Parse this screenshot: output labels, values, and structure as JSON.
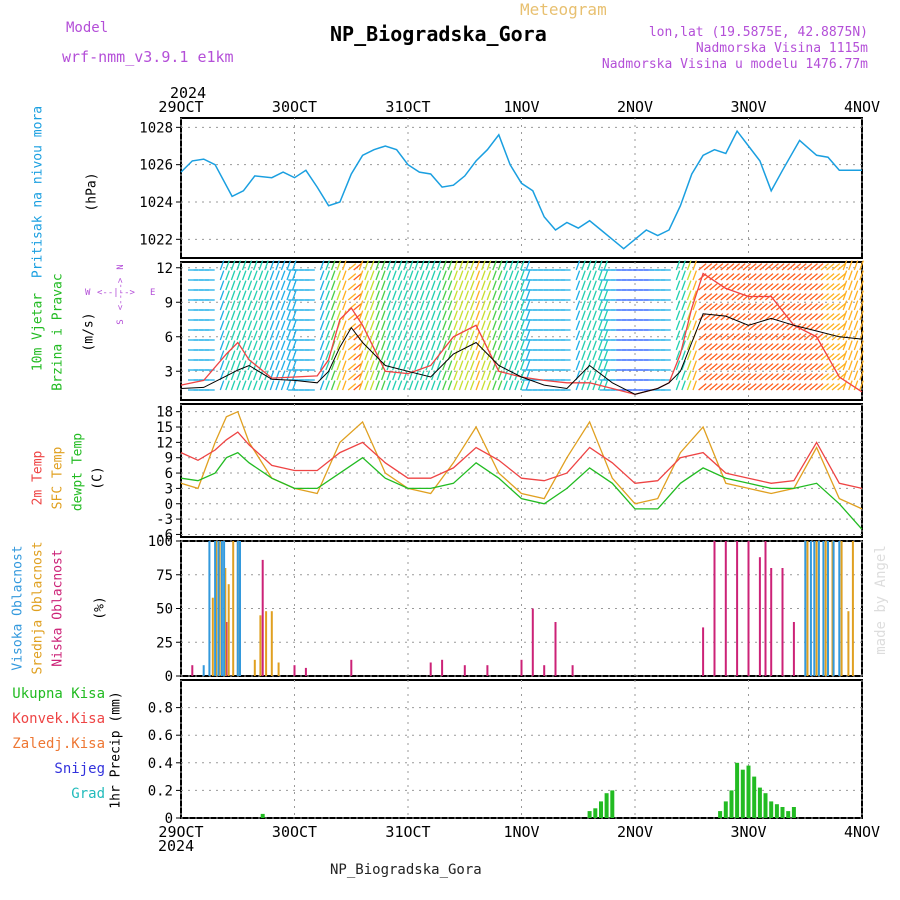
{
  "header": {
    "model_label": "Model",
    "model_name": "wrf-nmm_v3.9.1 e1km",
    "product": "Meteogram",
    "station": "NP_Biogradska_Gora",
    "lonlat": "lon,lat (19.5875E, 42.8875N)",
    "elevation": "Nadmorska Visina 1115m",
    "model_elevation": "Nadmorska Visina u modelu 1476.77m",
    "footer_station": "NP_Biogradska_Gora",
    "watermark": "made by Angel"
  },
  "colors": {
    "pressure": "#1a9fe0",
    "speed_line": "#000000",
    "gust": "#ee4444",
    "temp_2m": "#ee4444",
    "temp_sfc": "#e0a020",
    "dewpoint": "#22bb22",
    "cloud_high": "#3399dd",
    "cloud_mid": "#e0a020",
    "cloud_low": "#cc2277",
    "precip": "#22bb22",
    "header_purple": "#b44fd8",
    "header_orange": "#e8c070"
  },
  "time_axis": {
    "year": "2024",
    "ticks": [
      "29OCT",
      "30OCT",
      "31OCT",
      "1NOV",
      "2NOV",
      "3NOV",
      "4NOV"
    ]
  },
  "panels": {
    "pressure": {
      "label": "Pritisak na nivou mora",
      "unit": "(hPa)",
      "ticks": [
        "1022",
        "1024",
        "1026",
        "1028"
      ]
    },
    "wind": {
      "label1": "10m Vjetar",
      "label2": "Brzina i Pravac",
      "unit": "(m/s)",
      "ticks": [
        "3",
        "6",
        "9",
        "12"
      ],
      "compass_n": "N",
      "compass_s": "S",
      "compass_e": "E",
      "compass_w": "W",
      "compass_axis_v": "<---->",
      "compass_axis_h": "<--|-->"
    },
    "temp": {
      "label1": "2m Temp",
      "label2": "SFC Temp",
      "label3": "dewpt Temp",
      "unit": "(C)",
      "ticks": [
        "-6",
        "-3",
        "0",
        "3",
        "6",
        "9",
        "12",
        "15",
        "18"
      ]
    },
    "cloud": {
      "label1": "Visoka Oblacnost",
      "label2": "Srednja Oblacnost",
      "label3": "Niska Oblacnost",
      "unit": "(%)",
      "ticks": [
        "0",
        "25",
        "50",
        "75",
        "100"
      ]
    },
    "precip": {
      "legend": [
        "Ukupna Kisa",
        "Konvek.Kisa",
        "Zaledj.Kisa",
        "Snijeg",
        "Grad"
      ],
      "legend_colors": [
        "#22bb22",
        "#ee4444",
        "#ee7733",
        "#3333dd",
        "#22bbbb"
      ],
      "unit": "1hr Precip (mm)",
      "ticks": [
        "0",
        "0.2",
        "0.4",
        "0.6",
        "0.8"
      ]
    }
  },
  "chart_data": [
    {
      "type": "line",
      "title": "Pritisak na nivou mora",
      "ylabel": "(hPa)",
      "x_unit": "days since 29OCT 00UTC",
      "ylim": [
        1021,
        1028.5
      ],
      "series": [
        {
          "name": "pressure",
          "x": [
            0,
            0.1,
            0.2,
            0.3,
            0.45,
            0.55,
            0.65,
            0.8,
            0.9,
            1.0,
            1.1,
            1.2,
            1.3,
            1.4,
            1.5,
            1.6,
            1.7,
            1.8,
            1.9,
            2.0,
            2.1,
            2.2,
            2.3,
            2.4,
            2.5,
            2.6,
            2.7,
            2.8,
            2.9,
            3.0,
            3.1,
            3.2,
            3.3,
            3.4,
            3.5,
            3.6,
            3.7,
            3.8,
            3.9,
            4.0,
            4.1,
            4.2,
            4.3,
            4.4,
            4.5,
            4.6,
            4.7,
            4.8,
            4.9,
            5.0,
            5.1,
            5.2,
            5.3,
            5.45,
            5.6,
            5.7,
            5.8,
            5.9,
            6.0
          ],
          "values": [
            1025.6,
            1026.2,
            1026.3,
            1026.0,
            1024.3,
            1024.6,
            1025.4,
            1025.3,
            1025.6,
            1025.3,
            1025.7,
            1024.8,
            1023.8,
            1024.0,
            1025.5,
            1026.5,
            1026.8,
            1027.0,
            1026.8,
            1026.0,
            1025.6,
            1025.5,
            1024.8,
            1024.9,
            1025.4,
            1026.2,
            1026.8,
            1027.6,
            1026.0,
            1025.0,
            1024.6,
            1023.2,
            1022.5,
            1022.9,
            1022.6,
            1023.0,
            1022.5,
            1022.0,
            1021.5,
            1022.0,
            1022.5,
            1022.2,
            1022.5,
            1023.8,
            1025.5,
            1026.5,
            1026.8,
            1026.6,
            1027.8,
            1027.0,
            1026.2,
            1024.6,
            1025.7,
            1027.3,
            1026.5,
            1026.4,
            1025.7,
            1025.7,
            1025.7
          ]
        }
      ]
    },
    {
      "type": "line",
      "title": "10m Vjetar Brzina i Pravac",
      "ylabel": "(m/s)",
      "x_unit": "days since 29OCT 00UTC",
      "ylim": [
        0.5,
        12.5
      ],
      "series": [
        {
          "name": "speed",
          "x": [
            0,
            0.2,
            0.4,
            0.5,
            0.6,
            0.8,
            1.0,
            1.2,
            1.3,
            1.4,
            1.5,
            1.6,
            1.8,
            2.0,
            2.2,
            2.4,
            2.6,
            2.8,
            3.0,
            3.2,
            3.4,
            3.6,
            3.8,
            4.0,
            4.2,
            4.3,
            4.4,
            4.5,
            4.6,
            4.8,
            5.0,
            5.2,
            5.4,
            5.6,
            5.8,
            6.0
          ],
          "values": [
            1.5,
            1.6,
            2.6,
            3.1,
            3.5,
            2.3,
            2.2,
            2.0,
            3.0,
            5.1,
            6.8,
            5.5,
            3.5,
            3.0,
            2.5,
            4.5,
            5.5,
            3.5,
            2.5,
            1.8,
            1.5,
            3.5,
            2.0,
            1.0,
            1.5,
            2.0,
            3.0,
            5.5,
            8.0,
            7.8,
            7.0,
            7.6,
            7.0,
            6.5,
            6.0,
            5.8
          ]
        },
        {
          "name": "gust",
          "x": [
            0,
            0.2,
            0.4,
            0.5,
            0.6,
            0.8,
            1.0,
            1.2,
            1.3,
            1.4,
            1.5,
            1.6,
            1.8,
            2.0,
            2.2,
            2.4,
            2.6,
            2.8,
            3.0,
            3.2,
            3.4,
            3.6,
            3.8,
            4.0,
            4.2,
            4.3,
            4.4,
            4.5,
            4.6,
            4.8,
            5.0,
            5.2,
            5.4,
            5.6,
            5.8,
            6.0
          ],
          "values": [
            1.8,
            2.2,
            4.5,
            5.5,
            4.0,
            2.4,
            2.5,
            2.6,
            4.0,
            7.5,
            8.5,
            7.0,
            3.0,
            2.8,
            3.5,
            6.0,
            7.0,
            3.0,
            2.5,
            2.2,
            2.0,
            2.0,
            1.5,
            1.0,
            1.5,
            2.0,
            4.5,
            8.5,
            11.5,
            10.2,
            9.5,
            9.5,
            7.0,
            6.0,
            2.5,
            1.2
          ]
        }
      ]
    },
    {
      "type": "line",
      "title": "2m Temp / SFC Temp / dewpt Temp",
      "ylabel": "(C)",
      "x_unit": "days since 29OCT 00UTC",
      "ylim": [
        -6.5,
        19.5
      ],
      "series": [
        {
          "name": "2m Temp",
          "x": [
            0,
            0.15,
            0.3,
            0.4,
            0.5,
            0.6,
            0.8,
            1.0,
            1.2,
            1.4,
            1.6,
            1.8,
            2.0,
            2.2,
            2.4,
            2.6,
            2.8,
            3.0,
            3.2,
            3.4,
            3.6,
            3.8,
            4.0,
            4.2,
            4.4,
            4.6,
            4.8,
            5.0,
            5.2,
            5.4,
            5.6,
            5.8,
            6.0
          ],
          "values": [
            10,
            8.5,
            10.5,
            12.5,
            14,
            11.5,
            7.5,
            6.5,
            6.5,
            10,
            12,
            8,
            5,
            5,
            7,
            11,
            8.5,
            5,
            4.5,
            6,
            11,
            8,
            4,
            4.5,
            9,
            10,
            6,
            5,
            4,
            4.5,
            12,
            4,
            3
          ]
        },
        {
          "name": "SFC Temp",
          "x": [
            0,
            0.15,
            0.3,
            0.4,
            0.5,
            0.6,
            0.8,
            1.0,
            1.2,
            1.4,
            1.6,
            1.8,
            2.0,
            2.2,
            2.4,
            2.6,
            2.8,
            3.0,
            3.2,
            3.4,
            3.6,
            3.8,
            4.0,
            4.2,
            4.4,
            4.6,
            4.8,
            5.0,
            5.2,
            5.4,
            5.6,
            5.8,
            6.0
          ],
          "values": [
            4,
            3,
            12,
            17,
            18,
            12,
            5,
            3,
            2,
            12,
            16,
            6,
            3,
            2,
            8,
            15,
            6,
            2,
            1,
            9,
            16,
            5,
            0,
            1,
            10,
            15,
            4,
            3,
            2,
            3,
            11,
            1,
            -1
          ]
        },
        {
          "name": "dewpt Temp",
          "x": [
            0,
            0.15,
            0.3,
            0.4,
            0.5,
            0.6,
            0.8,
            1.0,
            1.2,
            1.4,
            1.6,
            1.8,
            2.0,
            2.2,
            2.4,
            2.6,
            2.8,
            3.0,
            3.2,
            3.4,
            3.6,
            3.8,
            4.0,
            4.2,
            4.4,
            4.6,
            4.8,
            5.0,
            5.2,
            5.4,
            5.6,
            5.8,
            6.0
          ],
          "values": [
            5,
            4.5,
            6,
            9,
            10,
            8,
            5,
            3,
            3,
            6,
            9,
            5,
            3,
            3,
            4,
            8,
            5,
            1,
            0,
            3,
            7,
            4,
            -1,
            -1,
            4,
            7,
            5,
            4,
            3,
            3,
            4,
            0,
            -5
          ]
        }
      ]
    },
    {
      "type": "bar",
      "title": "Visoka / Srednja / Niska Oblacnost",
      "ylabel": "(%)",
      "x_unit": "days since 29OCT 00UTC",
      "ylim": [
        0,
        100
      ],
      "series": [
        {
          "name": "Visoka Oblacnost",
          "x": [
            0.2,
            0.25,
            0.3,
            0.33,
            0.36,
            0.38,
            0.5,
            0.52,
            5.5,
            5.55,
            5.58,
            5.62,
            5.66,
            5.7,
            5.75,
            5.8
          ],
          "values": [
            8,
            100,
            100,
            100,
            100,
            100,
            100,
            100,
            100,
            100,
            100,
            100,
            100,
            100,
            100,
            100
          ]
        },
        {
          "name": "Srednja Oblacnost",
          "x": [
            0.28,
            0.31,
            0.34,
            0.39,
            0.42,
            0.46,
            0.5,
            0.65,
            0.7,
            0.75,
            0.8,
            0.86,
            5.52,
            5.6,
            5.68,
            5.74,
            5.82,
            5.88,
            5.92
          ],
          "values": [
            58,
            100,
            100,
            80,
            68,
            100,
            100,
            12,
            45,
            48,
            48,
            10,
            100,
            100,
            100,
            100,
            100,
            48,
            100
          ]
        },
        {
          "name": "Niska Oblacnost",
          "x": [
            0.1,
            0.4,
            0.72,
            1.0,
            1.1,
            1.5,
            2.2,
            2.3,
            2.5,
            2.7,
            3.0,
            3.1,
            3.2,
            3.3,
            3.45,
            4.6,
            4.7,
            4.8,
            4.9,
            5.0,
            5.1,
            5.15,
            5.2,
            5.3,
            5.4
          ],
          "values": [
            8,
            40,
            86,
            8,
            6,
            12,
            10,
            12,
            8,
            8,
            12,
            50,
            8,
            40,
            8,
            36,
            100,
            100,
            100,
            100,
            88,
            100,
            80,
            80,
            40
          ]
        }
      ]
    },
    {
      "type": "bar",
      "title": "1hr Precip (mm)",
      "ylabel": "1hr Precip (mm)",
      "x_unit": "days since 29OCT 00UTC",
      "ylim": [
        0,
        1
      ],
      "series": [
        {
          "name": "Ukupna Kisa",
          "x": [
            0.72,
            3.6,
            3.65,
            3.7,
            3.75,
            3.8,
            4.75,
            4.8,
            4.85,
            4.9,
            4.95,
            5.0,
            5.05,
            5.1,
            5.15,
            5.2,
            5.25,
            5.3,
            5.35,
            5.4
          ],
          "values": [
            0.03,
            0.05,
            0.07,
            0.12,
            0.18,
            0.2,
            0.05,
            0.12,
            0.2,
            0.4,
            0.35,
            0.38,
            0.3,
            0.22,
            0.18,
            0.12,
            0.1,
            0.08,
            0.05,
            0.08
          ]
        }
      ]
    }
  ]
}
